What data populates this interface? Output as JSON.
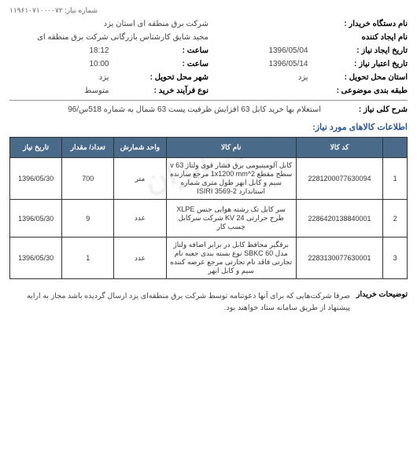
{
  "header": {
    "req_number_label": "شماره نیاز:",
    "req_number": "۱۱۹۶۱۰۷۱۰۰۰۰۷۲"
  },
  "watermark": "ستاد ایران",
  "info": {
    "buyer_org_label": "نام دستگاه خریدار :",
    "buyer_org": "شرکت برق منطقه ای استان یزد",
    "creator_label": "نام ایجاد کننده",
    "creator": "مجید شایق کارشناس بازرگانی شرکت برق منطقه ای",
    "create_date_label": "تاریخ ایجاد نیاز :",
    "create_date": "1396/05/04",
    "create_time_label": "ساعت :",
    "create_time": "18:12",
    "expire_date_label": "تاریخ اعتبار نیاز :",
    "expire_date": "1396/05/14",
    "expire_time_label": "ساعت :",
    "expire_time": "10:00",
    "delivery_province_label": "استان محل تحویل :",
    "delivery_province": "یزد",
    "delivery_city_label": "شهر محل تحویل :",
    "delivery_city": "یزد",
    "category_label": "طبقه بندی موضوعی :",
    "category": "",
    "process_label": "نوع فرآیند خرید :",
    "process": "متوسط",
    "desc_label": "شرح کلی نیاز :",
    "desc": "استعلام بها خرید کابل 63 افزایش ظرفیت پست 63 شمال به شماره 518س/96"
  },
  "section_title": "اطلاعات کالاهای مورد نیاز:",
  "table": {
    "headers": {
      "idx": "",
      "code": "کد کالا",
      "name": "نام کالا",
      "unit": "واحد شمارش",
      "qty": "تعداد/ مقدار",
      "date": "تاریخ نیاز"
    },
    "rows": [
      {
        "idx": "1",
        "code": "2281200077630094",
        "name": "کابل آلومینیومی برق فشار قوی ولتاژ v 63 سطح مقطع 1x1200 mm^2 مرجع سازنده سیم و کابل ابهر طول متری شماره استاندارد ISIRI 3569-2",
        "unit": "متر",
        "qty": "700",
        "date": "1396/05/30"
      },
      {
        "idx": "2",
        "code": "2286420138840001",
        "name": "سر کابل تک رشته هوایی جنس XLPE طرح حرارتی 24 KV شرکت سرکابل چسب کار",
        "unit": "عدد",
        "qty": "9",
        "date": "1396/05/30"
      },
      {
        "idx": "3",
        "code": "2283130077630001",
        "name": "برقگیر محافظ کابل در برابر اضافه ولتاژ مدل SBKC 60 نوع بسته بندی جعبه نام تجارتی فاقد نام تجارتی مرجع عرضه کننده سیم و کابل ابهر",
        "unit": "عدد",
        "qty": "1",
        "date": "1396/05/30"
      }
    ]
  },
  "notes": {
    "label": "توضیحات خریدار",
    "text": "صرفا شرکت‌هایی که برای آنها دعوتنامه توسط شرکت برق منطقه‌ای یزد ارسال گردیده باشد مجاز به ارایه پیشنهاد از طریق سامانه ستاد خواهند بود."
  }
}
